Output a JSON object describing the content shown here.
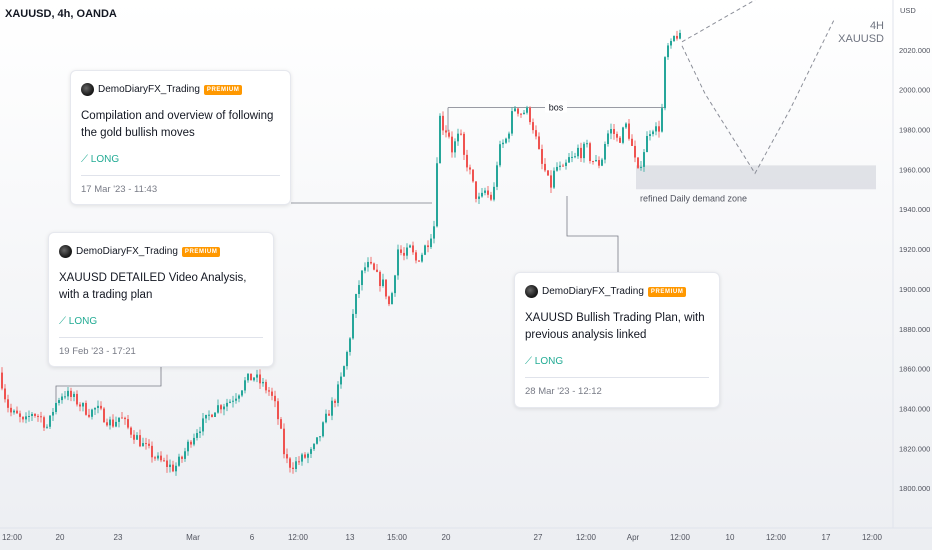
{
  "header": {
    "symbol": "XAUUSD, 4h, OANDA",
    "currency": "USD"
  },
  "watermark": {
    "line1": "4H",
    "line2": "XAUUSD"
  },
  "colors": {
    "up": "#26a69a",
    "down": "#ef5350",
    "text": "#131722",
    "muted": "#787b86",
    "badge": "#ff9800",
    "long": "#22ab94"
  },
  "annotations": {
    "bos": "bos",
    "zone": "refined Daily demand zone"
  },
  "cards": [
    {
      "author": "DemoDiaryFX_Trading",
      "badge": "PREMIUM",
      "title": "Compilation and overview of following the gold bullish moves",
      "direction": "LONG",
      "date": "17 Mar '23 - 11:43"
    },
    {
      "author": "DemoDiaryFX_Trading",
      "badge": "PREMIUM",
      "title": "XAUUSD DETAILED Video Analysis, with a trading plan",
      "direction": "LONG",
      "date": "19 Feb '23 - 17:21"
    },
    {
      "author": "DemoDiaryFX_Trading",
      "badge": "PREMIUM",
      "title": "XAUUSD Bullish Trading Plan, with previous analysis linked",
      "direction": "LONG",
      "date": "28 Mar '23 - 12:12"
    }
  ],
  "chart_data": {
    "type": "candlestick",
    "ylim": [
      1780,
      2045
    ],
    "y_ticks": [
      "2020.000",
      "2000.000",
      "1980.000",
      "1960.000",
      "1940.000",
      "1920.000",
      "1900.000",
      "1880.000",
      "1860.000",
      "1840.000",
      "1820.000",
      "1800.000"
    ],
    "y_tick_values": [
      2020,
      2000,
      1980,
      1960,
      1940,
      1920,
      1900,
      1880,
      1860,
      1840,
      1820,
      1800
    ],
    "x_ticks": [
      "12:00",
      "20",
      "23",
      "Mar",
      "6",
      "12:00",
      "13",
      "15:00",
      "20",
      "27",
      "12:00",
      "Apr",
      "12:00",
      "10",
      "12:00",
      "17",
      "12:00"
    ],
    "demand_zone": {
      "low": 1950,
      "high": 1962
    },
    "bos_level": 1991,
    "close_path": [
      [
        0,
        1858
      ],
      [
        4,
        1848
      ],
      [
        10,
        1838
      ],
      [
        18,
        1836
      ],
      [
        24,
        1832
      ],
      [
        32,
        1838
      ],
      [
        40,
        1836
      ],
      [
        48,
        1830
      ],
      [
        52,
        1838
      ],
      [
        58,
        1845
      ],
      [
        64,
        1848
      ],
      [
        70,
        1846
      ],
      [
        76,
        1844
      ],
      [
        84,
        1840
      ],
      [
        90,
        1838
      ],
      [
        96,
        1840
      ],
      [
        104,
        1836
      ],
      [
        112,
        1832
      ],
      [
        120,
        1836
      ],
      [
        128,
        1830
      ],
      [
        136,
        1826
      ],
      [
        142,
        1822
      ],
      [
        150,
        1818
      ],
      [
        158,
        1814
      ],
      [
        166,
        1812
      ],
      [
        174,
        1810
      ],
      [
        182,
        1815
      ],
      [
        190,
        1824
      ],
      [
        198,
        1830
      ],
      [
        206,
        1834
      ],
      [
        214,
        1840
      ],
      [
        222,
        1842
      ],
      [
        230,
        1844
      ],
      [
        238,
        1848
      ],
      [
        246,
        1854
      ],
      [
        254,
        1856
      ],
      [
        262,
        1852
      ],
      [
        270,
        1848
      ],
      [
        276,
        1840
      ],
      [
        280,
        1830
      ],
      [
        284,
        1818
      ],
      [
        288,
        1812
      ],
      [
        294,
        1812
      ],
      [
        300,
        1814
      ],
      [
        306,
        1816
      ],
      [
        312,
        1818
      ],
      [
        318,
        1824
      ],
      [
        324,
        1832
      ],
      [
        330,
        1840
      ],
      [
        336,
        1846
      ],
      [
        342,
        1856
      ],
      [
        348,
        1870
      ],
      [
        354,
        1890
      ],
      [
        360,
        1905
      ],
      [
        366,
        1912
      ],
      [
        372,
        1910
      ],
      [
        378,
        1905
      ],
      [
        384,
        1902
      ],
      [
        390,
        1890
      ],
      [
        394,
        1906
      ],
      [
        398,
        1920
      ],
      [
        404,
        1916
      ],
      [
        410,
        1920
      ],
      [
        416,
        1914
      ],
      [
        422,
        1918
      ],
      [
        428,
        1924
      ],
      [
        434,
        1932
      ],
      [
        437,
        1966
      ],
      [
        440,
        1986
      ],
      [
        444,
        1980
      ],
      [
        448,
        1980
      ],
      [
        452,
        1970
      ],
      [
        456,
        1974
      ],
      [
        460,
        1978
      ],
      [
        464,
        1966
      ],
      [
        468,
        1962
      ],
      [
        474,
        1950
      ],
      [
        478,
        1944
      ],
      [
        482,
        1946
      ],
      [
        486,
        1950
      ],
      [
        490,
        1944
      ],
      [
        494,
        1950
      ],
      [
        498,
        1968
      ],
      [
        502,
        1972
      ],
      [
        506,
        1975
      ],
      [
        510,
        1982
      ],
      [
        514,
        1992
      ],
      [
        518,
        1990
      ],
      [
        522,
        1988
      ],
      [
        526,
        1990
      ],
      [
        530,
        1986
      ],
      [
        534,
        1980
      ],
      [
        538,
        1970
      ],
      [
        542,
        1962
      ],
      [
        546,
        1958
      ],
      [
        550,
        1950
      ],
      [
        554,
        1958
      ],
      [
        558,
        1962
      ],
      [
        562,
        1958
      ],
      [
        566,
        1962
      ],
      [
        570,
        1966
      ],
      [
        574,
        1964
      ],
      [
        578,
        1970
      ],
      [
        582,
        1968
      ],
      [
        586,
        1972
      ],
      [
        590,
        1966
      ],
      [
        594,
        1964
      ],
      [
        598,
        1962
      ],
      [
        602,
        1966
      ],
      [
        606,
        1976
      ],
      [
        610,
        1980
      ],
      [
        614,
        1978
      ],
      [
        618,
        1974
      ],
      [
        622,
        1978
      ],
      [
        626,
        1982
      ],
      [
        630,
        1976
      ],
      [
        634,
        1966
      ],
      [
        638,
        1958
      ],
      [
        642,
        1966
      ],
      [
        646,
        1974
      ],
      [
        650,
        1980
      ],
      [
        654,
        1982
      ],
      [
        658,
        1978
      ],
      [
        662,
        1990
      ],
      [
        666,
        2022
      ],
      [
        670,
        2020
      ],
      [
        674,
        2026
      ],
      [
        678,
        2028
      ],
      [
        682,
        2023
      ]
    ]
  }
}
